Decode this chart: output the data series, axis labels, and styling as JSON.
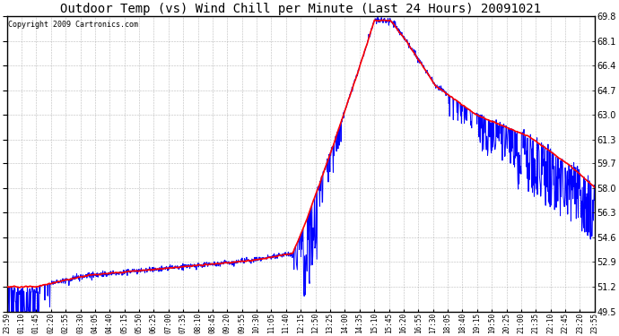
{
  "title": "Outdoor Temp (vs) Wind Chill per Minute (Last 24 Hours) 20091021",
  "copyright": "Copyright 2009 Cartronics.com",
  "ylim": [
    49.5,
    69.8
  ],
  "yticks": [
    49.5,
    51.2,
    52.9,
    54.6,
    56.3,
    58.0,
    59.7,
    61.3,
    63.0,
    64.7,
    66.4,
    68.1,
    69.8
  ],
  "x_labels": [
    "23:59",
    "01:10",
    "01:45",
    "02:20",
    "02:55",
    "03:30",
    "04:05",
    "04:40",
    "05:15",
    "05:50",
    "06:25",
    "07:00",
    "07:35",
    "08:10",
    "08:45",
    "09:20",
    "09:55",
    "10:30",
    "11:05",
    "11:40",
    "12:15",
    "12:50",
    "13:25",
    "14:00",
    "14:35",
    "15:10",
    "15:45",
    "16:20",
    "16:55",
    "17:30",
    "18:05",
    "18:40",
    "19:15",
    "19:50",
    "20:25",
    "21:00",
    "21:35",
    "22:10",
    "22:45",
    "23:20",
    "23:55"
  ],
  "background_color": "#ffffff",
  "grid_color": "#aaaaaa",
  "outer_border_color": "#000000",
  "red_line_color": "#ff0000",
  "blue_line_color": "#0000ff",
  "title_fontsize": 10,
  "copyright_fontsize": 6,
  "tick_fontsize": 7,
  "xtick_fontsize": 5.5
}
